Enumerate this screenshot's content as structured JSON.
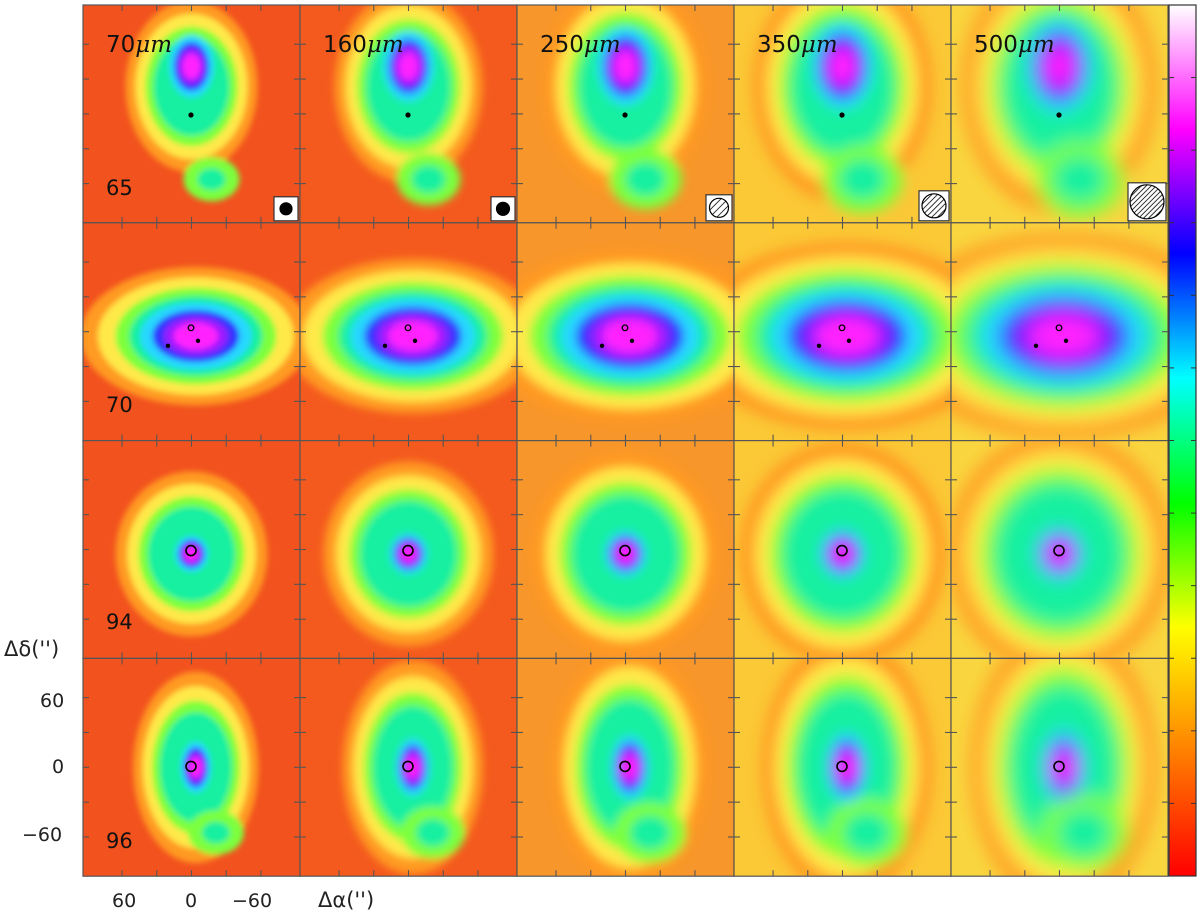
{
  "wavelengths": [
    {
      "value": "70",
      "unit": "μm"
    },
    {
      "value": "160",
      "unit": "μm"
    },
    {
      "value": "250",
      "unit": "μm"
    },
    {
      "value": "350",
      "unit": "μm"
    },
    {
      "value": "500",
      "unit": "μm"
    }
  ],
  "sources": [
    "65",
    "70",
    "94",
    "96"
  ],
  "axes": {
    "x_label": "Δα('')",
    "y_label": "Δδ('')",
    "x_ticks": [
      "60",
      "0",
      "−60"
    ],
    "y_ticks": [
      "60",
      "0",
      "−60"
    ]
  },
  "colorbar": {
    "colors": [
      "#ff0000",
      "#ff8000",
      "#ffff00",
      "#00ff00",
      "#00ffff",
      "#0000ff",
      "#ff00ff",
      "#ffffff"
    ]
  },
  "colors": {
    "background_low": "#f25a1e",
    "peak": "#ff20ff"
  }
}
